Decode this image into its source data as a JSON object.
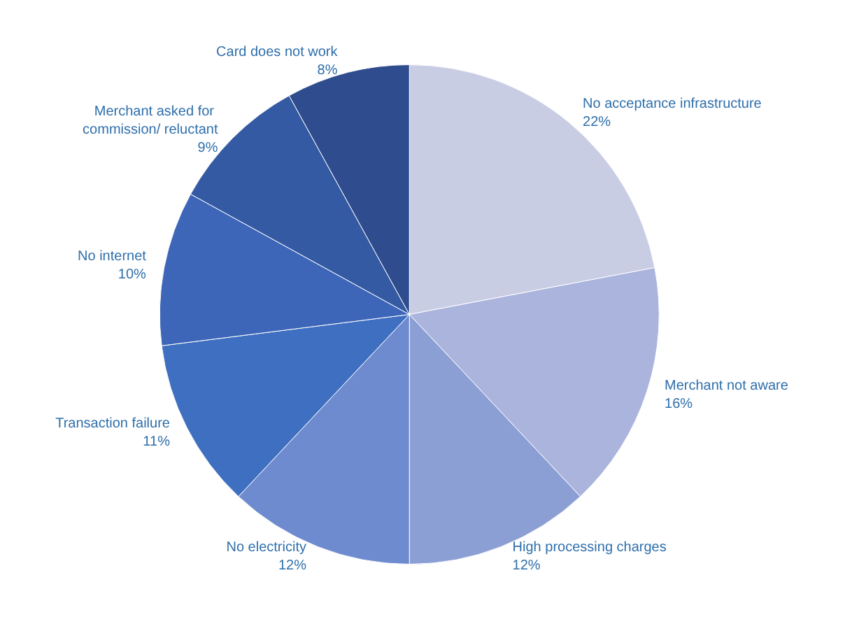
{
  "chart_data": {
    "type": "pie",
    "categories": [
      "No acceptance infrastructure",
      "Merchant not aware",
      "High processing charges",
      "No electricity",
      "Transaction failure",
      "No internet",
      "Merchant asked for commission/ reluctant",
      "Card does not work"
    ],
    "values": [
      22,
      16,
      12,
      12,
      11,
      10,
      9,
      8
    ],
    "colors": [
      "#c9cde4",
      "#aab4dc",
      "#8c9fd4",
      "#6e8bcf",
      "#3f6fc0",
      "#3d66b8",
      "#345aa4",
      "#2e4c8e"
    ],
    "value_labels": [
      "22%",
      "16%",
      "12%",
      "12%",
      "11%",
      "10%",
      "9%",
      "8%"
    ],
    "legend": false
  }
}
